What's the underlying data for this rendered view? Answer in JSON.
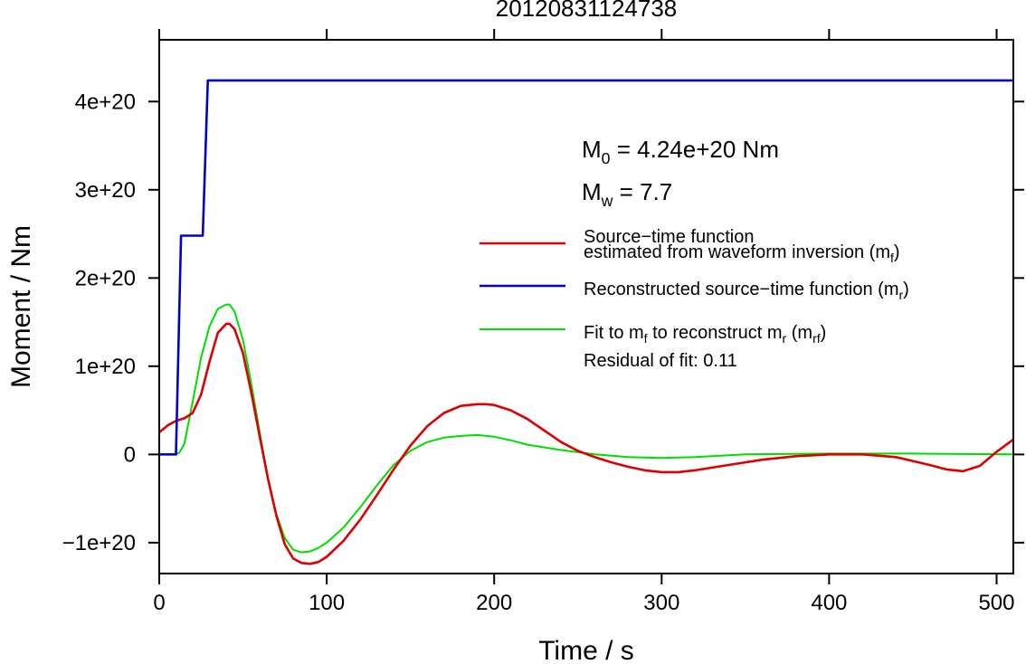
{
  "chart_data": {
    "type": "line",
    "title": "20120831124738",
    "xlabel": "Time / s",
    "ylabel": "Moment / Nm",
    "xlim": [
      0,
      510
    ],
    "ylim": [
      -1.35e+20,
      4.7e+20
    ],
    "grid": false,
    "legend_position": "right",
    "x_ticks": [
      0,
      100,
      200,
      300,
      400,
      500
    ],
    "x_tick_labels": [
      "0",
      "100",
      "200",
      "300",
      "400",
      "500"
    ],
    "y_ticks": [
      -1e+20,
      0,
      1e+20,
      2e+20,
      3e+20,
      4e+20
    ],
    "y_tick_labels": [
      "−1e+20",
      "0",
      "1e+20",
      "2e+20",
      "3e+20",
      "4e+20"
    ],
    "annotations": {
      "m0": {
        "prefix": "M",
        "sub": "0",
        "text": " = 4.24e+20 Nm"
      },
      "mw": {
        "prefix": "M",
        "sub": "w",
        "text": " = 7.7"
      },
      "residual": "Residual of fit: 0.11"
    },
    "legend": [
      {
        "series": "source",
        "color": "#dd0000",
        "parts": [
          {
            "t": "Source−time function"
          },
          {
            "t": "estimated from waveform inversion (m"
          },
          {
            "t": "f",
            "sub": true
          },
          {
            "t": ")"
          }
        ]
      },
      {
        "series": "reconstructed",
        "color": "#0000cc",
        "parts": [
          {
            "t": "Reconstructed source−time function (m"
          },
          {
            "t": "r",
            "sub": true
          },
          {
            "t": ")"
          }
        ]
      },
      {
        "series": "fit",
        "color": "#00dd00",
        "parts": [
          {
            "t": "Fit to m"
          },
          {
            "t": "f",
            "sub": true
          },
          {
            "t": " to reconstruct m"
          },
          {
            "t": "r",
            "sub": true
          },
          {
            "t": " (m"
          },
          {
            "t": "rf",
            "sub": true
          },
          {
            "t": ")"
          }
        ]
      }
    ],
    "series": [
      {
        "id": "reconstructed",
        "color": "#0000cc",
        "x": [
          0,
          10,
          13,
          26,
          29,
          510
        ],
        "y": [
          0,
          0,
          2.48e+20,
          2.48e+20,
          4.24e+20,
          4.24e+20
        ]
      },
      {
        "id": "source",
        "color": "#dd0000",
        "x": [
          0,
          5,
          10,
          15,
          20,
          25,
          30,
          35,
          40,
          42,
          45,
          50,
          55,
          60,
          65,
          70,
          75,
          80,
          85,
          90,
          95,
          100,
          110,
          120,
          130,
          140,
          150,
          160,
          170,
          180,
          190,
          195,
          200,
          210,
          220,
          230,
          240,
          250,
          260,
          270,
          280,
          290,
          300,
          310,
          320,
          340,
          360,
          380,
          400,
          420,
          440,
          460,
          470,
          480,
          490,
          500,
          510
        ],
        "y": [
          2.5e+19,
          3.3e+19,
          3.8e+19,
          4.1e+19,
          4.7e+19,
          6.8e+19,
          1.05e+20,
          1.38e+20,
          1.48e+20,
          1.48e+20,
          1.42e+20,
          1.15e+20,
          7e+19,
          2e+19,
          -2.8e+19,
          -7e+19,
          -1.02e+20,
          -1.18e+20,
          -1.23e+20,
          -1.24e+20,
          -1.22e+20,
          -1.16e+20,
          -9.8e+19,
          -7.4e+19,
          -4.6e+19,
          -1.7e+19,
          1e+19,
          3.2e+19,
          4.7e+19,
          5.5e+19,
          5.7e+19,
          5.7e+19,
          5.6e+19,
          5e+19,
          4e+19,
          2.7e+19,
          1.4e+19,
          4e+18,
          -3e+18,
          -9e+18,
          -1.4e+19,
          -1.8e+19,
          -2e+19,
          -2e+19,
          -1.8e+19,
          -1.2e+19,
          -6e+18,
          -2e+18,
          0.0,
          0.0,
          -3e+18,
          -1.2e+19,
          -1.7e+19,
          -1.9e+19,
          -1.3e+19,
          3e+18,
          1.7e+19
        ]
      },
      {
        "id": "fit",
        "color": "#00dd00",
        "x": [
          0,
          10,
          12,
          15,
          20,
          25,
          30,
          35,
          40,
          42,
          45,
          50,
          55,
          60,
          65,
          70,
          75,
          80,
          85,
          90,
          95,
          100,
          110,
          120,
          130,
          140,
          150,
          160,
          170,
          180,
          190,
          200,
          210,
          220,
          240,
          260,
          280,
          300,
          320,
          350,
          400,
          450,
          510
        ],
        "y": [
          0,
          0,
          2e+18,
          1.2e+19,
          6e+19,
          1.1e+20,
          1.45e+20,
          1.65e+20,
          1.7e+20,
          1.7e+20,
          1.62e+20,
          1.3e+20,
          8e+19,
          2.5e+19,
          -2.8e+19,
          -6.8e+19,
          -9.5e+19,
          -1.08e+20,
          -1.11e+20,
          -1.1e+20,
          -1.06e+20,
          -1e+20,
          -8.3e+19,
          -6e+19,
          -3.5e+19,
          -1.2e+19,
          4e+18,
          1.4e+19,
          1.9e+19,
          2.1e+19,
          2.2e+19,
          2e+19,
          1.6e+19,
          1.1e+19,
          5e+18,
          0.0,
          -3e+18,
          -4e+18,
          -3e+18,
          0.0,
          1e+18,
          1e+18,
          0.0
        ]
      }
    ]
  }
}
